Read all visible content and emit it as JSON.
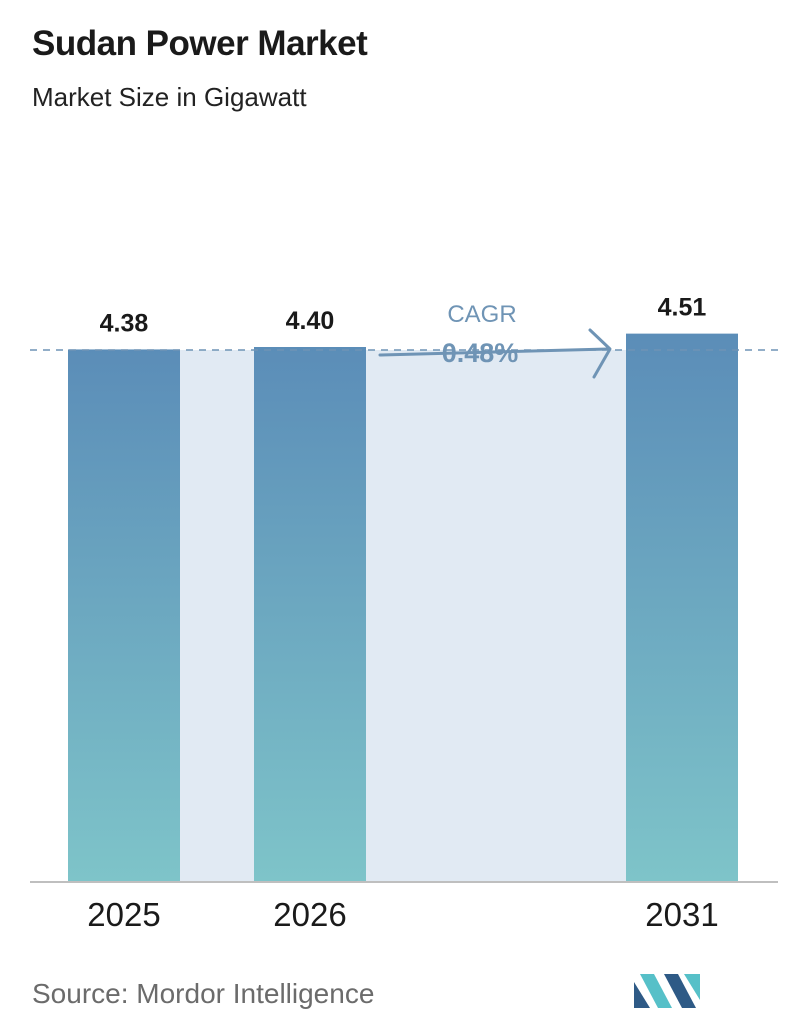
{
  "header": {
    "title": "Sudan Power Market",
    "subtitle": "Market Size in Gigawatt"
  },
  "chart_data": {
    "type": "bar",
    "categories": [
      "2025",
      "2026",
      "2031"
    ],
    "values": [
      4.38,
      4.4,
      4.51
    ],
    "value_labels": [
      "4.38",
      "4.40",
      "4.51"
    ],
    "title": "Sudan Power Market",
    "subtitle": "Market Size in Gigawatt",
    "ylabel": "",
    "xlabel": "",
    "grid": false,
    "legend": "none",
    "annotation": {
      "label": "CAGR",
      "value": "0.48%",
      "from": "2026",
      "to": "2031"
    }
  },
  "colors": {
    "bar_top": "#5b8db8",
    "bar_bottom": "#7ec4c9",
    "highlight_band": "#e1eaf3",
    "dashed_line": "#6f94b5",
    "cagr_text": "#6f94b5",
    "axis": "#bfbfbf",
    "logo_dark": "#2e5a86",
    "logo_light": "#56c0c8"
  },
  "footer": {
    "source": "Source:  Mordor Intelligence",
    "logo_icon": "mordor-intelligence-logo-icon"
  }
}
